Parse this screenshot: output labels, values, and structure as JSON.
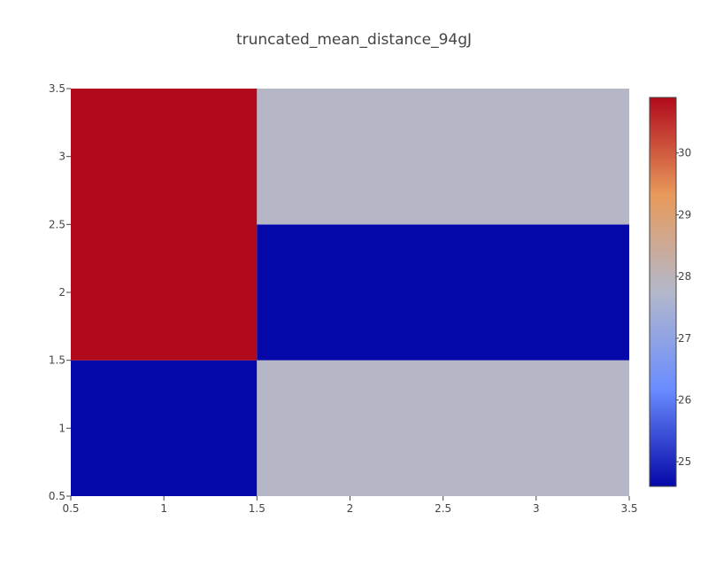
{
  "chart_data": {
    "type": "heatmap",
    "title": "truncated_mean_distance_94gJ",
    "xlabel": "",
    "ylabel": "",
    "x_range": [
      0.5,
      3.5
    ],
    "y_range": [
      0.5,
      3.5
    ],
    "x_ticks": [
      "0.5",
      "1",
      "1.5",
      "2",
      "2.5",
      "3",
      "3.5"
    ],
    "y_ticks": [
      "0.5",
      "1",
      "1.5",
      "2",
      "2.5",
      "3",
      "3.5"
    ],
    "cells": [
      {
        "x0": 0.5,
        "x1": 1.5,
        "y0": 0.5,
        "y1": 1.5,
        "value": 24.6
      },
      {
        "x0": 0.5,
        "x1": 1.5,
        "y0": 1.5,
        "y1": 3.5,
        "value": 30.9
      },
      {
        "x0": 1.5,
        "x1": 3.5,
        "y0": 0.5,
        "y1": 1.5,
        "value": 27.8
      },
      {
        "x0": 1.5,
        "x1": 3.5,
        "y0": 1.5,
        "y1": 2.5,
        "value": 24.6
      },
      {
        "x0": 1.5,
        "x1": 3.5,
        "y0": 2.5,
        "y1": 3.5,
        "value": 27.8
      }
    ],
    "colorscale": {
      "min": 24.6,
      "max": 30.9,
      "stops": [
        "#0508a8",
        "#6a8cff",
        "#b3b8cb",
        "#e8995a",
        "#b10a1c"
      ],
      "ticks": [
        "25",
        "26",
        "27",
        "28",
        "29",
        "30"
      ]
    },
    "grid": false,
    "colorbar_placement": "right"
  }
}
